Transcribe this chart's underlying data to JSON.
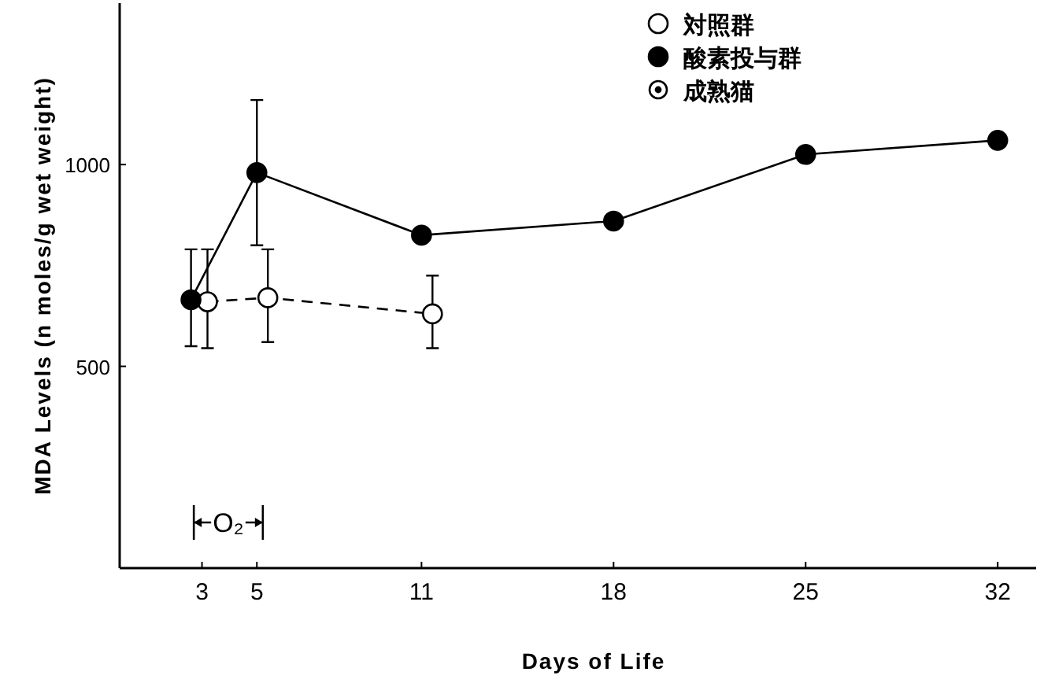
{
  "chart_data": {
    "type": "line",
    "xlabel": "Days of Life",
    "ylabel": "MDA Levels (n moles/g wet weight)",
    "xlim": [
      0,
      33.4
    ],
    "ylim": [
      0,
      1400
    ],
    "xticks": [
      3,
      5,
      11,
      18,
      25,
      32
    ],
    "yticks": [
      500,
      1000
    ],
    "grid": false,
    "legend": "top",
    "marker": "circle",
    "series": [
      {
        "name": "対照群",
        "color": "#ffffff",
        "line_style": "dashed",
        "x": [
          3.2,
          5.4,
          11.4
        ],
        "values": [
          660,
          670,
          630
        ],
        "errors": [
          [
            545,
            790
          ],
          [
            560,
            790
          ],
          [
            545,
            725
          ]
        ]
      },
      {
        "name": "酸素投与群",
        "color": "#000000",
        "line_style": "solid",
        "x": [
          2.6,
          5,
          11,
          18,
          25,
          32
        ],
        "values": [
          665,
          980,
          825,
          860,
          1025,
          1060
        ],
        "errors": [
          [
            550,
            790
          ],
          [
            800,
            1160
          ],
          null,
          null,
          null,
          null
        ]
      },
      {
        "name": "成熟猫",
        "color": "#000000",
        "marker": "ring"
      }
    ],
    "annotations": [
      "O₂"
    ]
  }
}
